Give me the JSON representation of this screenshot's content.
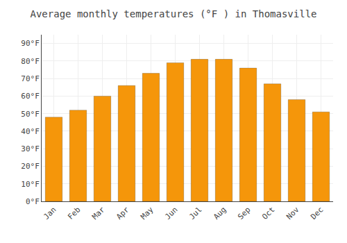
{
  "chart_data": {
    "type": "bar",
    "title": "Average monthly temperatures (°F ) in Thomasville",
    "categories": [
      "Jan",
      "Feb",
      "Mar",
      "Apr",
      "May",
      "Jun",
      "Jul",
      "Aug",
      "Sep",
      "Oct",
      "Nov",
      "Dec"
    ],
    "values": [
      48,
      52,
      60,
      66,
      73,
      79,
      81,
      81,
      76,
      67,
      58,
      51
    ],
    "color": "#F5960A",
    "ylim": [
      0,
      95
    ],
    "yticks": [
      {
        "value": 0,
        "label": "0°F"
      },
      {
        "value": 10,
        "label": "10°F"
      },
      {
        "value": 20,
        "label": "20°F"
      },
      {
        "value": 30,
        "label": "30°F"
      },
      {
        "value": 40,
        "label": "40°F"
      },
      {
        "value": 50,
        "label": "50°F"
      },
      {
        "value": 60,
        "label": "60°F"
      },
      {
        "value": 70,
        "label": "70°F"
      },
      {
        "value": 80,
        "label": "80°F"
      },
      {
        "value": 90,
        "label": "90°F"
      }
    ],
    "grid": true
  }
}
